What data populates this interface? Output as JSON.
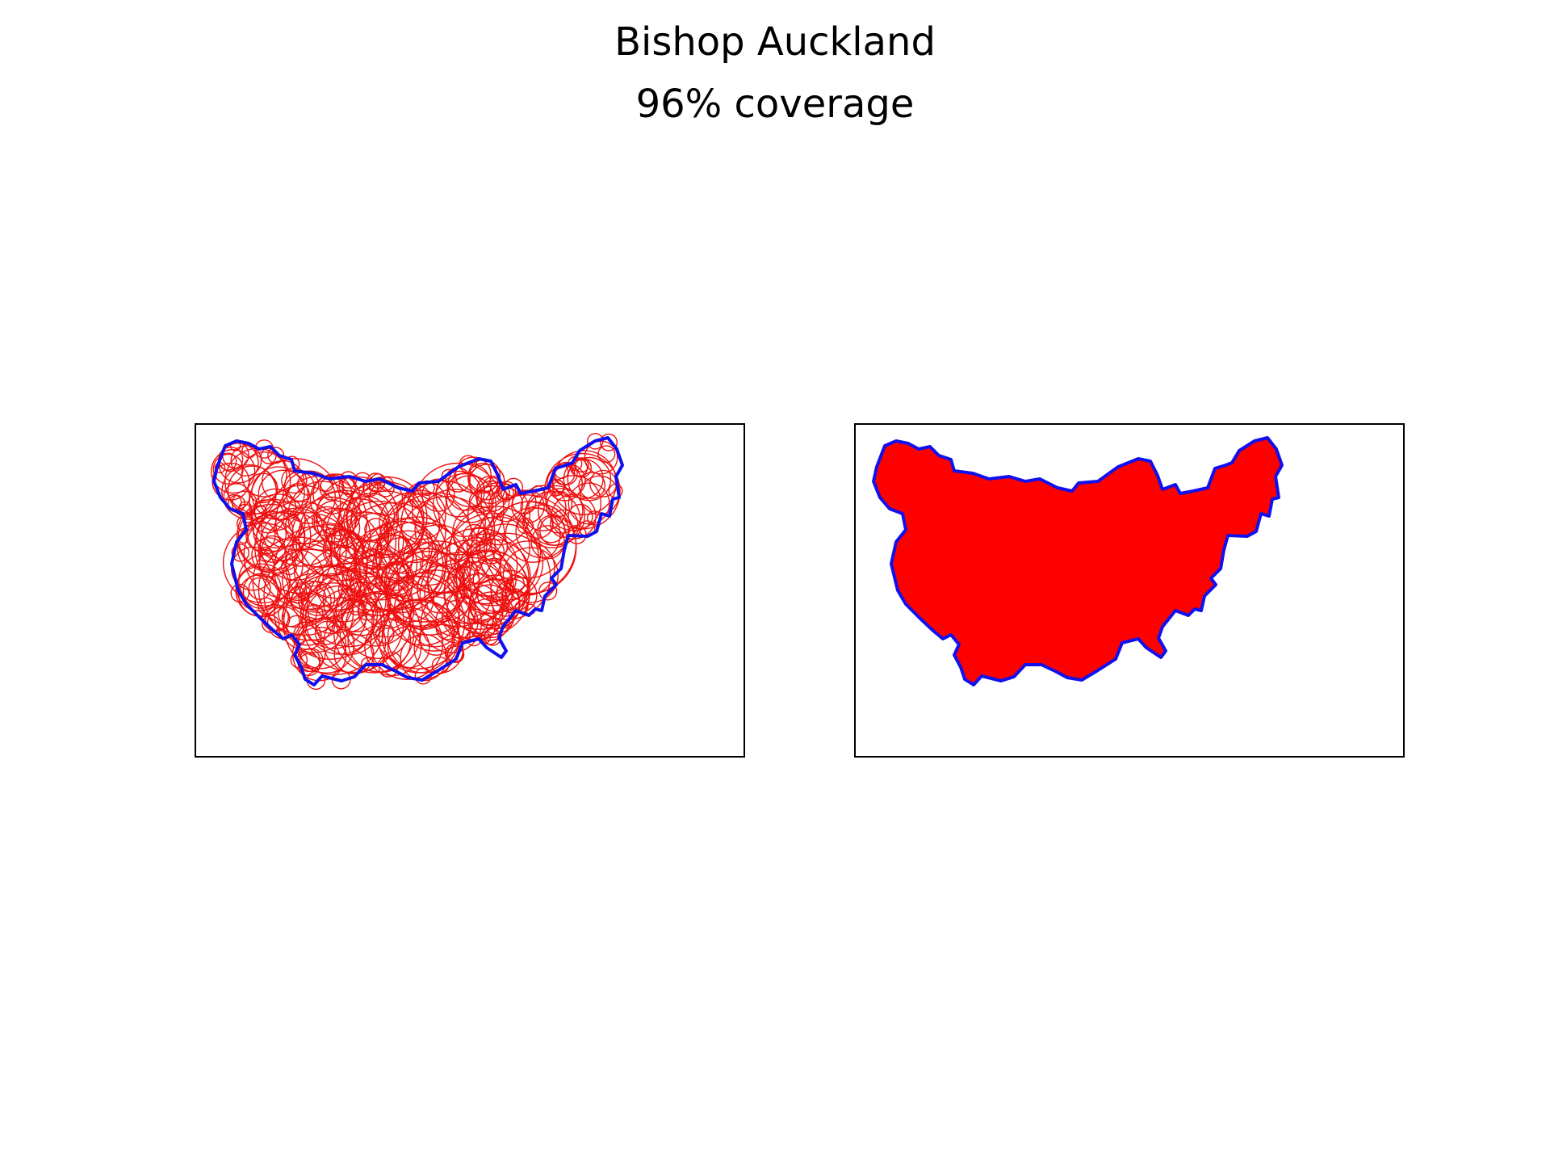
{
  "figure": {
    "title": "Bishop Auckland",
    "subtitle": "96% coverage"
  },
  "colors": {
    "boundary": "#1010ee",
    "circles": "#ee1010",
    "fill": "#ff0000",
    "frame": "#000000",
    "background": "#ffffff"
  },
  "panels": [
    {
      "id": "circle-coverage-map",
      "style": "circle outlines"
    },
    {
      "id": "filled-coverage-map",
      "style": "solid fill"
    }
  ]
}
